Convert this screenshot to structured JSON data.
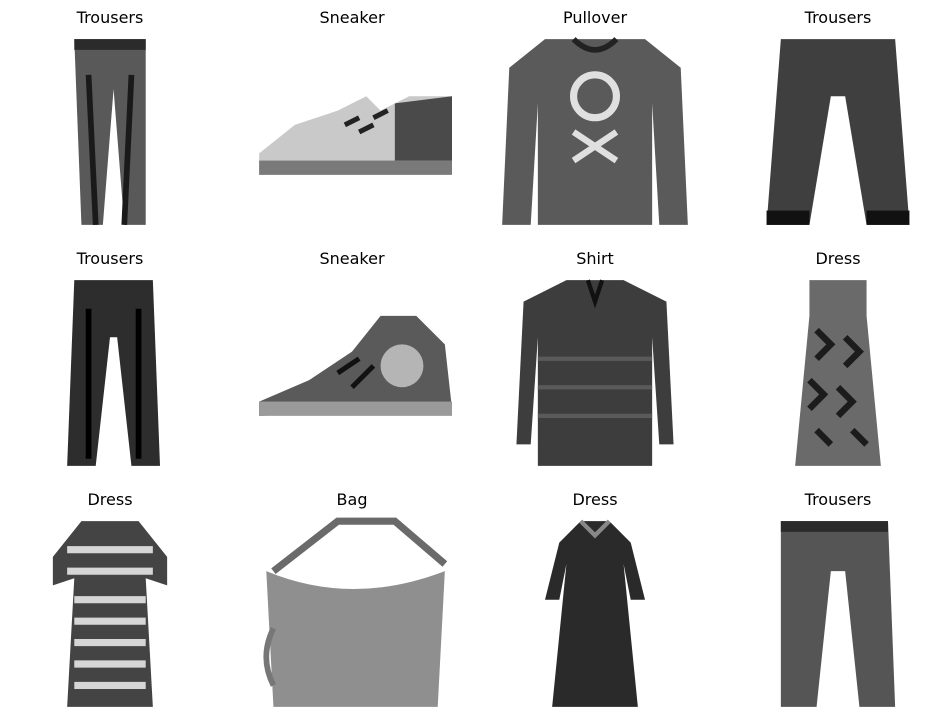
{
  "figure": {
    "panels": [
      {
        "label": "Trousers",
        "item": "trousers"
      },
      {
        "label": "Sneaker",
        "item": "sneaker"
      },
      {
        "label": "Pullover",
        "item": "pullover"
      },
      {
        "label": "Trousers",
        "item": "trousers"
      },
      {
        "label": "Trousers",
        "item": "trousers"
      },
      {
        "label": "Sneaker",
        "item": "sneaker"
      },
      {
        "label": "Shirt",
        "item": "shirt"
      },
      {
        "label": "Dress",
        "item": "dress"
      },
      {
        "label": "Dress",
        "item": "dress"
      },
      {
        "label": "Bag",
        "item": "bag"
      },
      {
        "label": "Dress",
        "item": "dress"
      },
      {
        "label": "Trousers",
        "item": "trousers"
      }
    ]
  }
}
